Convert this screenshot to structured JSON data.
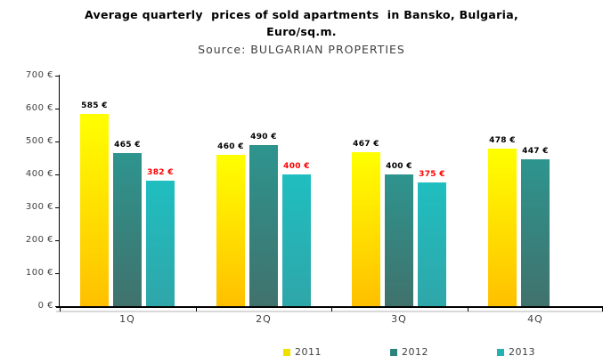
{
  "chart_data": {
    "type": "bar",
    "title": "Average quarterly prices of sold apartments in Bansko, Bulgaria, Euro/sq.m.",
    "title_lines": [
      "Average quarterly  prices of sold apartments  in Bansko, Bulgaria,",
      "Euro/sq.m."
    ],
    "subtitle": "Source: BULGARIAN PROPERTIES",
    "categories": [
      "1Q",
      "2Q",
      "3Q",
      "4Q"
    ],
    "series": [
      {
        "name": "2011",
        "values": [
          585,
          460,
          467,
          478
        ],
        "bar_gradient_top": "#FFFF00",
        "bar_gradient_bottom": "#FFC000",
        "legend_color": "#F0E000",
        "label_color": "#000000"
      },
      {
        "name": "2012",
        "values": [
          465,
          490,
          400,
          447
        ],
        "bar_gradient_top": "#2E948E",
        "bar_gradient_bottom": "#40726D",
        "legend_color": "#2F837D",
        "label_color": "#000000"
      },
      {
        "name": "2013",
        "values": [
          382,
          400,
          375,
          null
        ],
        "bar_gradient_top": "#1FBEC0",
        "bar_gradient_bottom": "#2FA6A9",
        "legend_color": "#27B0B2",
        "label_color": "#FF0000"
      }
    ],
    "value_label_suffix": " €",
    "y_axis": {
      "min": 0,
      "max": 700,
      "step": 100,
      "tick_suffix": " €"
    },
    "x_axis_ticks": [
      "0 €",
      "100 €",
      "200 €",
      "300 €",
      "400 €",
      "500 €",
      "600 €",
      "700 €"
    ],
    "legend_position": "bottom",
    "grid": false,
    "ylim": [
      0,
      700
    ]
  }
}
